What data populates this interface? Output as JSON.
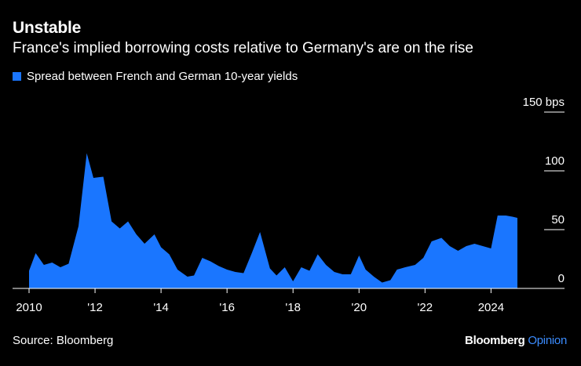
{
  "header": {
    "title": "Unstable",
    "subtitle": "France's implied borrowing costs relative to Germany's are on the rise"
  },
  "footer": {
    "source": "Source: Bloomberg",
    "brand_main": "Bloomberg",
    "brand_sub": "Opinion"
  },
  "colors": {
    "series": "#1a76ff",
    "background": "#000000",
    "text": "#ffffff",
    "brand_accent": "#3b8cff"
  },
  "chart_data": {
    "type": "area",
    "title": "Unstable",
    "subtitle": "France's implied borrowing costs relative to Germany's are on the rise",
    "legend_position": "top-left",
    "grid": false,
    "y_axis_side": "right",
    "ylim": [
      0,
      150
    ],
    "xlim": [
      2010,
      2025.6
    ],
    "y_ticks": [
      0,
      50,
      100,
      150
    ],
    "y_tick_labels": [
      "0",
      "50",
      "100",
      "150 bps"
    ],
    "x_ticks": [
      2010,
      2012,
      2014,
      2016,
      2018,
      2020,
      2022,
      2024
    ],
    "x_tick_labels": [
      "2010",
      "'12",
      "'14",
      "'16",
      "'18",
      "'20",
      "'22",
      "2024"
    ],
    "series": [
      {
        "name": "Spread between French and German 10-year yields",
        "x": [
          2010.0,
          2010.2,
          2010.45,
          2010.7,
          2010.95,
          2011.2,
          2011.5,
          2011.75,
          2011.95,
          2012.25,
          2012.5,
          2012.75,
          2013.0,
          2013.25,
          2013.5,
          2013.8,
          2014.0,
          2014.25,
          2014.5,
          2014.8,
          2015.0,
          2015.25,
          2015.5,
          2015.75,
          2016.0,
          2016.25,
          2016.5,
          2016.75,
          2017.0,
          2017.3,
          2017.5,
          2017.75,
          2018.0,
          2018.25,
          2018.5,
          2018.75,
          2019.0,
          2019.25,
          2019.5,
          2019.75,
          2020.0,
          2020.2,
          2020.45,
          2020.7,
          2020.95,
          2021.15,
          2021.4,
          2021.7,
          2021.95,
          2022.2,
          2022.5,
          2022.75,
          2023.0,
          2023.25,
          2023.5,
          2023.75,
          2024.0,
          2024.2,
          2024.45,
          2024.65,
          2024.8
        ],
        "y": [
          15,
          30,
          20,
          22,
          18,
          21,
          53,
          115,
          94,
          95,
          57,
          51,
          57,
          46,
          38,
          46,
          35,
          29,
          16,
          10,
          11,
          26,
          23,
          19,
          16,
          14,
          13,
          30,
          48,
          17,
          11,
          18,
          6,
          18,
          15,
          29,
          20,
          14,
          12,
          12,
          28,
          16,
          10,
          5,
          7,
          16,
          18,
          20,
          26,
          40,
          43,
          36,
          32,
          36,
          38,
          36,
          34,
          62,
          62,
          61,
          60
        ]
      }
    ]
  }
}
